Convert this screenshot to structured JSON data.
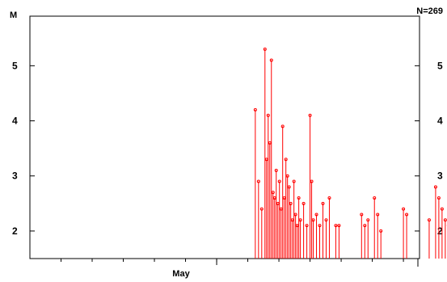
{
  "chart_data": {
    "type": "scatter",
    "style": "stem",
    "ylabel": "M",
    "count_label": "N=269",
    "x_tick_label": "May",
    "y_ticks": [
      2,
      3,
      4,
      5
    ],
    "ylim": [
      1.5,
      5.9
    ],
    "xlim_relative": [
      -0.58,
      0.63
    ],
    "x_note": "x values are positions relative to the May tick, as a fraction of the span from the axis start to the May tick",
    "colors": {
      "stem": "#ff0000",
      "axis": "#000000"
    },
    "grid": false,
    "series": [
      {
        "values": [
          [
            0.12,
            4.2
          ],
          [
            0.13,
            2.9
          ],
          [
            0.14,
            2.4
          ],
          [
            0.15,
            5.3
          ],
          [
            0.155,
            3.3
          ],
          [
            0.16,
            4.1
          ],
          [
            0.165,
            3.6
          ],
          [
            0.17,
            5.1
          ],
          [
            0.175,
            2.7
          ],
          [
            0.18,
            2.6
          ],
          [
            0.185,
            3.1
          ],
          [
            0.19,
            2.5
          ],
          [
            0.195,
            2.9
          ],
          [
            0.2,
            2.4
          ],
          [
            0.205,
            3.9
          ],
          [
            0.21,
            2.6
          ],
          [
            0.215,
            3.3
          ],
          [
            0.22,
            3.0
          ],
          [
            0.225,
            2.8
          ],
          [
            0.23,
            2.5
          ],
          [
            0.235,
            2.2
          ],
          [
            0.24,
            2.9
          ],
          [
            0.245,
            2.3
          ],
          [
            0.25,
            2.1
          ],
          [
            0.255,
            2.6
          ],
          [
            0.26,
            2.2
          ],
          [
            0.27,
            2.5
          ],
          [
            0.28,
            2.1
          ],
          [
            0.29,
            4.1
          ],
          [
            0.295,
            2.9
          ],
          [
            0.3,
            2.2
          ],
          [
            0.31,
            2.3
          ],
          [
            0.32,
            2.1
          ],
          [
            0.33,
            2.5
          ],
          [
            0.34,
            2.2
          ],
          [
            0.35,
            2.6
          ],
          [
            0.37,
            2.1
          ],
          [
            0.38,
            2.1
          ],
          [
            0.45,
            2.3
          ],
          [
            0.46,
            2.1
          ],
          [
            0.47,
            2.2
          ],
          [
            0.49,
            2.6
          ],
          [
            0.5,
            2.3
          ],
          [
            0.51,
            2.0
          ],
          [
            0.58,
            2.4
          ],
          [
            0.59,
            2.3
          ],
          [
            0.66,
            2.2
          ],
          [
            0.68,
            2.8
          ],
          [
            0.69,
            2.6
          ],
          [
            0.7,
            2.4
          ],
          [
            0.71,
            2.2
          ],
          [
            0.72,
            2.1
          ],
          [
            0.73,
            2.3
          ],
          [
            0.76,
            2.4
          ],
          [
            0.93,
            2.1
          ]
        ]
      }
    ]
  }
}
